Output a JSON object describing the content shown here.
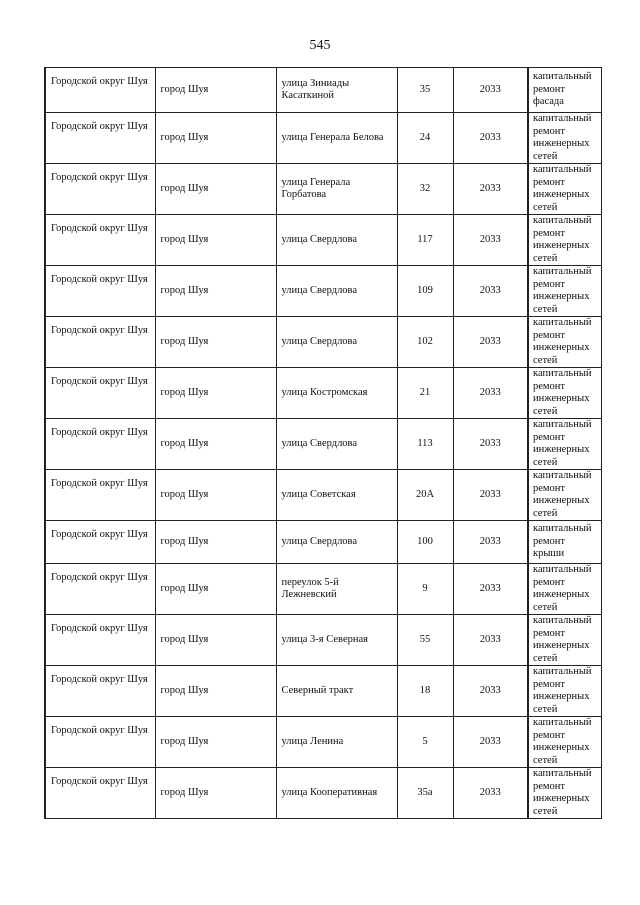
{
  "page_number": "545",
  "rows": [
    {
      "district": "Городской округ Шуя",
      "locality": "город Шуя",
      "street": "улица Зиниады Касаткиной",
      "house": "35",
      "year": "2033",
      "work": "капитальный ремонт фасада"
    },
    {
      "district": "Городской округ Шуя",
      "locality": "город Шуя",
      "street": "улица Генерала Белова",
      "house": "24",
      "year": "2033",
      "work": "капитальный ремонт инженерных сетей"
    },
    {
      "district": "Городской округ Шуя",
      "locality": "город Шуя",
      "street": "улица Генерала Горбатова",
      "house": "32",
      "year": "2033",
      "work": "капитальный ремонт инженерных сетей"
    },
    {
      "district": "Городской округ Шуя",
      "locality": "город Шуя",
      "street": "улица Свердлова",
      "house": "117",
      "year": "2033",
      "work": "капитальный ремонт инженерных сетей"
    },
    {
      "district": "Городской округ Шуя",
      "locality": "город Шуя",
      "street": "улица Свердлова",
      "house": "109",
      "year": "2033",
      "work": "капитальный ремонт инженерных сетей"
    },
    {
      "district": "Городской округ Шуя",
      "locality": "город Шуя",
      "street": "улица Свердлова",
      "house": "102",
      "year": "2033",
      "work": "капитальный ремонт инженерных сетей"
    },
    {
      "district": "Городской округ Шуя",
      "locality": "город Шуя",
      "street": "улица Костромская",
      "house": "21",
      "year": "2033",
      "work": "капитальный ремонт инженерных сетей"
    },
    {
      "district": "Городской округ Шуя",
      "locality": "город Шуя",
      "street": "улица Свердлова",
      "house": "113",
      "year": "2033",
      "work": "капитальный ремонт инженерных сетей"
    },
    {
      "district": "Городской округ Шуя",
      "locality": "город Шуя",
      "street": "улица Советская",
      "house": "20А",
      "year": "2033",
      "work": "капитальный ремонт инженерных сетей"
    },
    {
      "district": "Городской округ Шуя",
      "locality": "город Шуя",
      "street": "улица Свердлова",
      "house": "100",
      "year": "2033",
      "work": "капитальный ремонт крыши"
    },
    {
      "district": "Городской округ Шуя",
      "locality": "город Шуя",
      "street": "переулок 5-й Лежневский",
      "house": "9",
      "year": "2033",
      "work": "капитальный ремонт инженерных сетей"
    },
    {
      "district": "Городской округ Шуя",
      "locality": "город Шуя",
      "street": "улица 3-я Северная",
      "house": "55",
      "year": "2033",
      "work": "капитальный ремонт инженерных сетей"
    },
    {
      "district": "Городской округ Шуя",
      "locality": "город Шуя",
      "street": "Северный тракт",
      "house": "18",
      "year": "2033",
      "work": "капитальный ремонт инженерных сетей"
    },
    {
      "district": "Городской округ Шуя",
      "locality": "город Шуя",
      "street": "улица Ленина",
      "house": "5",
      "year": "2033",
      "work": "капитальный ремонт инженерных сетей"
    },
    {
      "district": "Городской округ Шуя",
      "locality": "город Шуя",
      "street": "улица Кооперативная",
      "house": "35а",
      "year": "2033",
      "work": "капитальный ремонт инженерных сетей"
    }
  ]
}
